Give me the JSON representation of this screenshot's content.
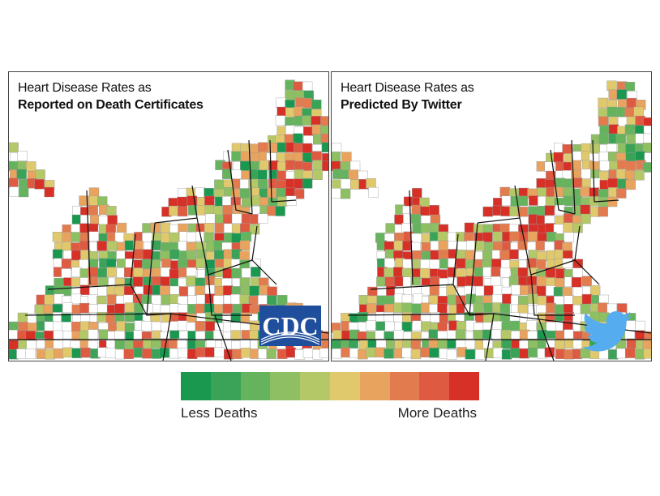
{
  "panels": [
    {
      "id": "reported",
      "title_line1": "Heart Disease Rates as",
      "title_line2": "Reported on Death Certificates",
      "logo": "cdc-logo",
      "logo_text": "CDC",
      "seed": 11
    },
    {
      "id": "predicted",
      "title_line1": "Heart Disease Rates as",
      "title_line2": "Predicted By Twitter",
      "logo": "twitter-bird-icon",
      "seed": 47
    }
  ],
  "legend": {
    "low_label": "Less Deaths",
    "high_label": "More Deaths",
    "colors": [
      "#1a9850",
      "#3aa357",
      "#66b35e",
      "#8fbf63",
      "#b5c867",
      "#e0c86d",
      "#e8a35e",
      "#e27c4f",
      "#de5a40",
      "#d73027"
    ]
  },
  "colors": {
    "unfilled_county": "#ffffff",
    "county_border": "#9a9a9a",
    "state_border": "#111111",
    "water": "#ffffff",
    "cdc_blue": "#1f4e9c",
    "twitter_blue": "#55acee"
  }
}
